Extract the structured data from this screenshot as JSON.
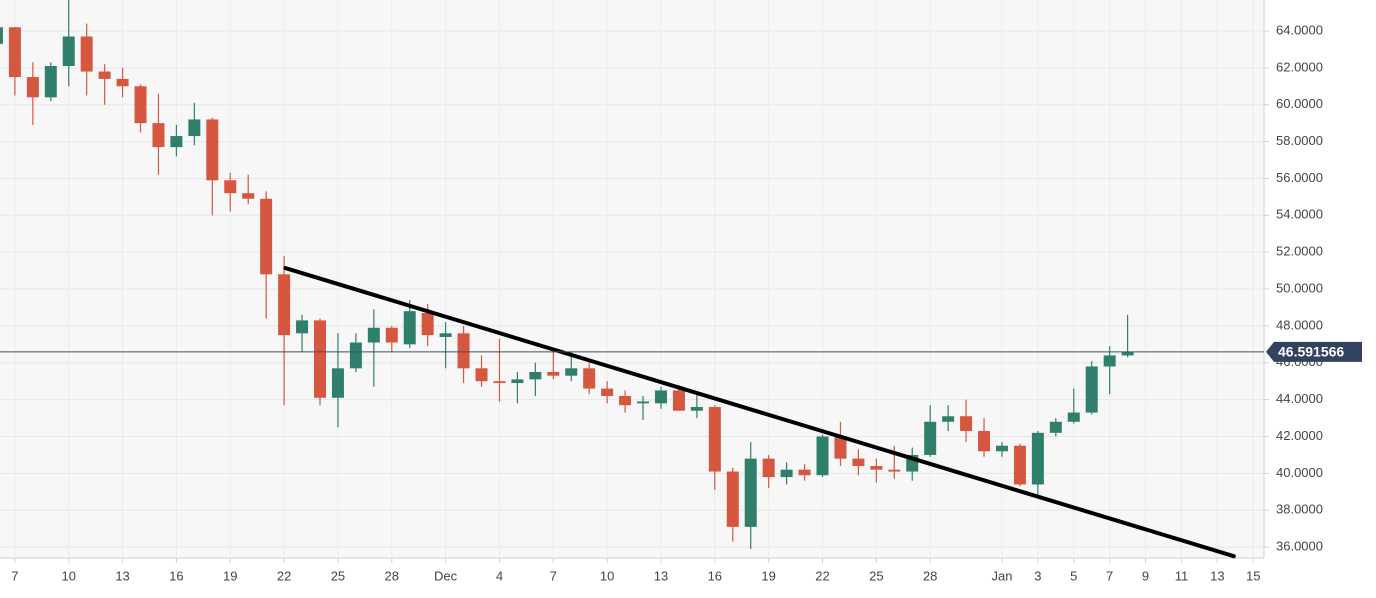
{
  "chart_data": {
    "type": "candlestick",
    "x": [
      0,
      1,
      2,
      3,
      4,
      5,
      6,
      7,
      8,
      9,
      10,
      11,
      12,
      13,
      14,
      15,
      16,
      17,
      18,
      19,
      20,
      21,
      22,
      23,
      24,
      25,
      26,
      27,
      28,
      29,
      30,
      31,
      32,
      33,
      34,
      35,
      36,
      37,
      38,
      39,
      40,
      41,
      42,
      43,
      44,
      45,
      46,
      47,
      48,
      49,
      50,
      51,
      52,
      53,
      54,
      55,
      56,
      57,
      58,
      59,
      60,
      61,
      62,
      63
    ],
    "open": [
      63.3,
      64.2,
      61.5,
      60.4,
      62.1,
      63.7,
      61.8,
      61.4,
      61.0,
      59.0,
      57.7,
      58.3,
      59.2,
      55.9,
      55.2,
      54.9,
      50.8,
      47.6,
      48.3,
      44.1,
      45.7,
      47.1,
      47.9,
      47.0,
      48.7,
      47.4,
      47.6,
      45.7,
      45.0,
      44.9,
      45.1,
      45.5,
      45.3,
      45.7,
      44.6,
      44.2,
      43.8,
      43.8,
      44.5,
      43.4,
      43.6,
      40.1,
      37.1,
      40.8,
      39.8,
      40.2,
      39.9,
      42.0,
      40.8,
      40.4,
      40.2,
      40.1,
      41.0,
      42.8,
      43.1,
      42.3,
      41.2,
      41.5,
      39.4,
      42.2,
      42.8,
      43.3,
      45.8,
      46.4
    ],
    "high": [
      64.3,
      64.2,
      62.3,
      62.3,
      65.7,
      64.4,
      62.2,
      62.0,
      61.1,
      60.6,
      58.9,
      60.1,
      59.3,
      56.3,
      56.2,
      55.3,
      51.8,
      48.6,
      48.4,
      47.6,
      47.6,
      48.9,
      48.0,
      49.4,
      49.2,
      48.2,
      48.0,
      46.4,
      47.3,
      45.5,
      46.0,
      46.6,
      46.6,
      46.0,
      45.0,
      44.5,
      44.2,
      44.7,
      44.8,
      44.3,
      43.7,
      40.3,
      41.7,
      41.0,
      40.6,
      40.5,
      42.1,
      42.8,
      41.3,
      40.8,
      41.5,
      41.4,
      43.7,
      43.7,
      44.0,
      43.0,
      41.7,
      41.6,
      42.3,
      43.0,
      44.6,
      46.1,
      46.9,
      48.6
    ],
    "low": [
      63.0,
      60.5,
      58.9,
      60.2,
      61.0,
      60.5,
      60.0,
      60.4,
      58.5,
      56.2,
      57.2,
      57.8,
      54.0,
      54.2,
      54.6,
      48.4,
      43.7,
      46.6,
      43.7,
      42.5,
      45.5,
      44.7,
      46.6,
      46.8,
      46.9,
      45.7,
      44.9,
      44.7,
      43.9,
      43.8,
      44.2,
      45.1,
      45.0,
      44.3,
      43.8,
      43.3,
      42.9,
      43.5,
      43.4,
      43.0,
      39.1,
      36.3,
      35.9,
      39.2,
      39.4,
      39.6,
      39.8,
      40.4,
      39.9,
      39.5,
      39.7,
      39.6,
      40.9,
      42.3,
      41.7,
      40.9,
      40.9,
      39.3,
      38.8,
      42.0,
      42.7,
      43.2,
      44.3,
      46.3
    ],
    "close": [
      64.2,
      61.5,
      60.4,
      62.1,
      63.7,
      61.8,
      61.4,
      61.0,
      59.0,
      57.7,
      58.3,
      59.2,
      55.9,
      55.2,
      54.9,
      50.8,
      47.5,
      48.3,
      44.1,
      45.7,
      47.1,
      47.9,
      47.1,
      48.8,
      47.5,
      47.6,
      45.7,
      45.0,
      44.9,
      45.1,
      45.5,
      45.3,
      45.7,
      44.6,
      44.2,
      43.7,
      43.9,
      44.5,
      43.4,
      43.6,
      40.1,
      37.1,
      40.8,
      39.8,
      40.2,
      39.9,
      42.0,
      40.8,
      40.4,
      40.2,
      40.1,
      41.0,
      42.8,
      43.1,
      42.3,
      41.2,
      41.5,
      39.4,
      42.2,
      42.8,
      43.3,
      45.8,
      46.4,
      46.6
    ],
    "up_color": "#2f7f6c",
    "down_color": "#d5573f",
    "xlim": [
      0.17,
      70.6
    ],
    "xticks": [
      {
        "value": 1,
        "label": "7"
      },
      {
        "value": 4,
        "label": "10"
      },
      {
        "value": 7,
        "label": "13"
      },
      {
        "value": 10,
        "label": "16"
      },
      {
        "value": 13,
        "label": "19"
      },
      {
        "value": 16,
        "label": "22"
      },
      {
        "value": 19,
        "label": "25"
      },
      {
        "value": 22,
        "label": "28"
      },
      {
        "value": 25,
        "label": "Dec"
      },
      {
        "value": 28,
        "label": "4"
      },
      {
        "value": 31,
        "label": "7"
      },
      {
        "value": 34,
        "label": "10"
      },
      {
        "value": 37,
        "label": "13"
      },
      {
        "value": 40,
        "label": "16"
      },
      {
        "value": 43,
        "label": "19"
      },
      {
        "value": 46,
        "label": "22"
      },
      {
        "value": 49,
        "label": "25"
      },
      {
        "value": 52,
        "label": "28"
      },
      {
        "value": 56,
        "label": "Jan"
      },
      {
        "value": 58,
        "label": "3"
      },
      {
        "value": 60,
        "label": "5"
      },
      {
        "value": 62,
        "label": "7"
      },
      {
        "value": 64,
        "label": "9"
      },
      {
        "value": 66,
        "label": "11"
      },
      {
        "value": 68,
        "label": "13"
      },
      {
        "value": 70,
        "label": "15"
      }
    ],
    "ylim": [
      35.41,
      65.68
    ],
    "yticks": [
      {
        "value": 36,
        "label": "36.0000"
      },
      {
        "value": 38,
        "label": "38.0000"
      },
      {
        "value": 40,
        "label": "40.0000"
      },
      {
        "value": 42,
        "label": "42.0000"
      },
      {
        "value": 44,
        "label": "44.0000"
      },
      {
        "value": 46,
        "label": "46.0000"
      },
      {
        "value": 48,
        "label": "48.0000"
      },
      {
        "value": 50,
        "label": "50.0000"
      },
      {
        "value": 52,
        "label": "52.0000"
      },
      {
        "value": 54,
        "label": "54.0000"
      },
      {
        "value": 56,
        "label": "56.0000"
      },
      {
        "value": 58,
        "label": "58.0000"
      },
      {
        "value": 60,
        "label": "60.0000"
      },
      {
        "value": 62,
        "label": "62.0000"
      },
      {
        "value": 64,
        "label": "64.0000"
      }
    ],
    "grid": true,
    "last_price": 46.591566,
    "trendline": {
      "x": [
        16.07,
        68.92
      ],
      "y": [
        51.14,
        35.51
      ],
      "color": "#000000"
    }
  }
}
